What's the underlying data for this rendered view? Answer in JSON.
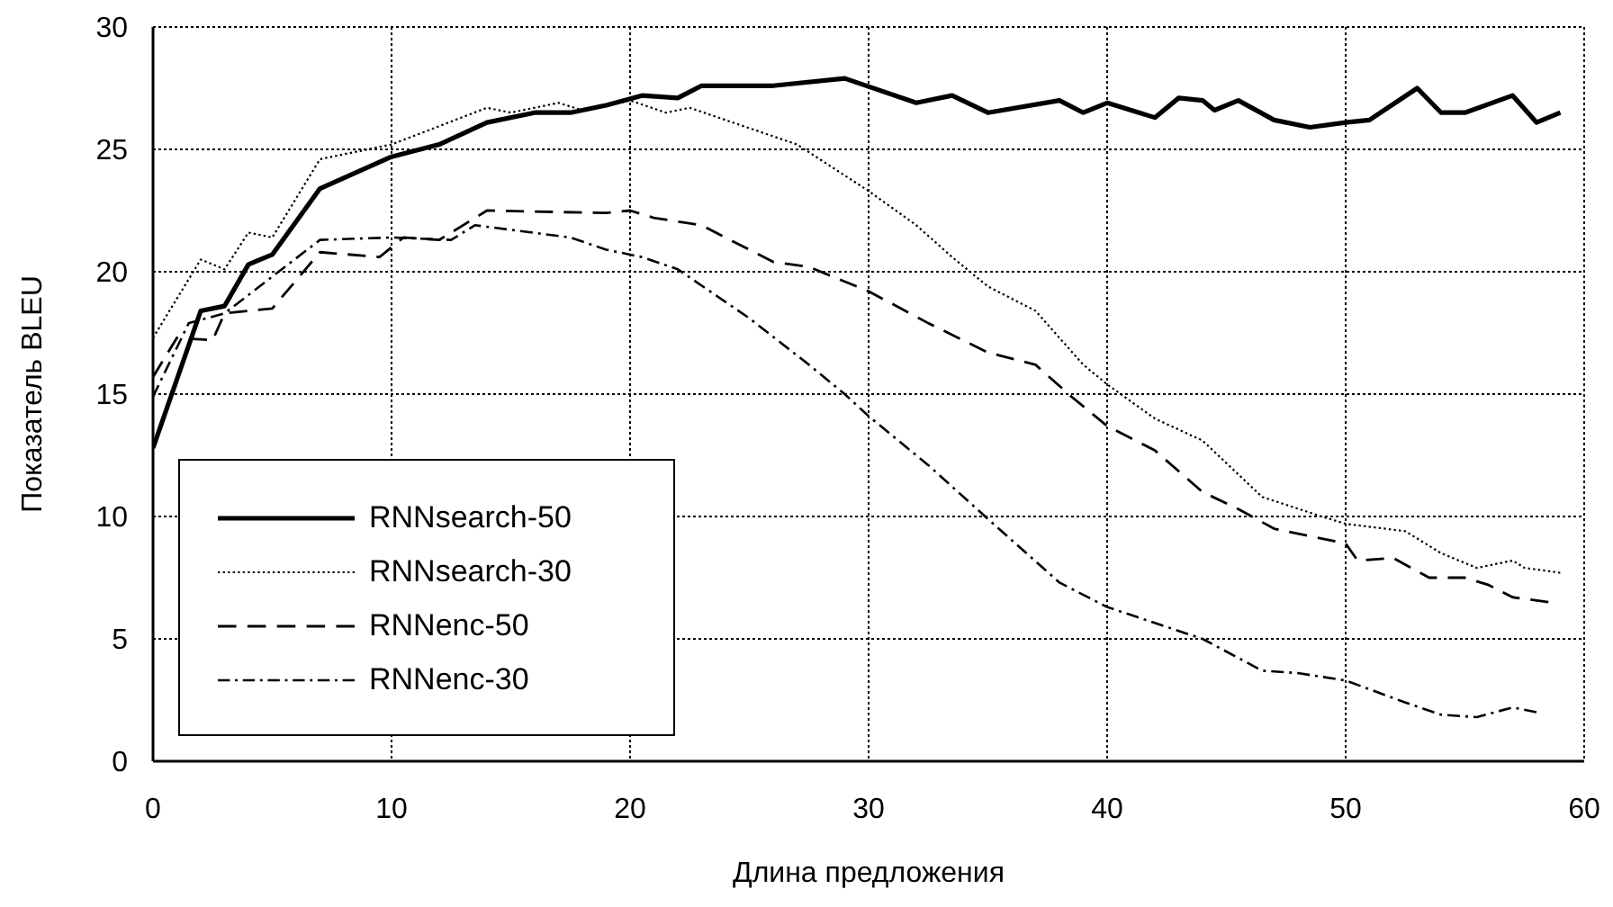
{
  "chart_data": {
    "type": "line",
    "xlabel": "Длина предложения",
    "ylabel": "Показатель BLEU",
    "xlim": [
      0,
      60
    ],
    "xticks": [
      0,
      10,
      20,
      30,
      40,
      50,
      60
    ],
    "ylim": [
      0,
      30
    ],
    "yticks": [
      0,
      5,
      10,
      15,
      20,
      25,
      30
    ],
    "grid": true,
    "legend": "bottom left",
    "marker": "none",
    "series": [
      {
        "name": "RNNsearch-50",
        "color": "#000000",
        "line_style": "solid",
        "x": [
          0,
          2,
          3,
          4,
          5,
          7,
          10,
          12,
          14,
          16,
          17.5,
          19,
          20.5,
          22,
          23,
          26,
          29,
          32,
          33.5,
          35,
          38,
          39,
          40,
          42,
          43,
          44,
          44.5,
          45.5,
          47,
          48.5,
          50,
          51,
          53,
          54,
          55,
          57,
          58,
          59
        ],
        "values": [
          12.8,
          18.4,
          18.6,
          20.3,
          20.7,
          23.4,
          24.7,
          25.2,
          26.1,
          26.5,
          26.5,
          26.8,
          27.2,
          27.1,
          27.6,
          27.6,
          27.9,
          26.9,
          27.2,
          26.5,
          27.0,
          26.5,
          26.9,
          26.3,
          27.1,
          27.0,
          26.6,
          27.0,
          26.2,
          25.9,
          26.1,
          26.2,
          27.5,
          26.5,
          26.5,
          27.2,
          26.1,
          26.5
        ]
      },
      {
        "name": "RNNsearch-30",
        "color": "#000000",
        "line_style": "dotted",
        "x": [
          0,
          2,
          3,
          4,
          5,
          7,
          10,
          14,
          15,
          17,
          18,
          20,
          21.5,
          22.5,
          24,
          27,
          30,
          32,
          33.5,
          35,
          37,
          39,
          40,
          42,
          44,
          46.5,
          49,
          50,
          52.5,
          54,
          55.5,
          57,
          57.5,
          59
        ],
        "values": [
          17.3,
          20.5,
          20.1,
          21.6,
          21.4,
          24.6,
          25.2,
          26.7,
          26.5,
          26.9,
          26.6,
          27.0,
          26.5,
          26.7,
          26.2,
          25.2,
          23.3,
          21.9,
          20.6,
          19.4,
          18.4,
          16.2,
          15.4,
          14.0,
          13.1,
          10.8,
          10.0,
          9.7,
          9.4,
          8.5,
          7.9,
          8.2,
          7.9,
          7.7
        ]
      },
      {
        "name": "RNNenc-50",
        "color": "#000000",
        "line_style": "dashed",
        "x": [
          0,
          1,
          2.5,
          3,
          5,
          7,
          9.5,
          10.5,
          12,
          14,
          19,
          20,
          21,
          23,
          26,
          27.5,
          30,
          32.5,
          35,
          37,
          38.5,
          40,
          42,
          44,
          45.5,
          47,
          50,
          50.5,
          52,
          53.5,
          55,
          56,
          57,
          58.5
        ],
        "values": [
          15.7,
          17.3,
          17.2,
          18.3,
          18.5,
          20.8,
          20.6,
          21.4,
          21.3,
          22.5,
          22.4,
          22.5,
          22.2,
          21.9,
          20.4,
          20.2,
          19.2,
          17.9,
          16.7,
          16.2,
          14.9,
          13.7,
          12.7,
          11.0,
          10.3,
          9.5,
          8.9,
          8.2,
          8.3,
          7.5,
          7.5,
          7.2,
          6.7,
          6.5
        ]
      },
      {
        "name": "RNNenc-30",
        "color": "#000000",
        "line_style": "dashdot",
        "x": [
          0,
          1.5,
          3,
          7,
          10,
          12.5,
          13.5,
          17.5,
          19,
          20.5,
          22,
          25,
          27.5,
          29,
          30,
          32.5,
          35,
          38,
          40,
          44,
          46.5,
          48,
          50,
          52.5,
          54,
          55.5,
          57,
          58
        ],
        "values": [
          14.9,
          17.9,
          18.3,
          21.3,
          21.4,
          21.3,
          21.9,
          21.4,
          20.9,
          20.6,
          20.1,
          18.1,
          16.2,
          15.0,
          14.1,
          12.1,
          9.9,
          7.3,
          6.3,
          5.0,
          3.7,
          3.6,
          3.3,
          2.4,
          1.9,
          1.8,
          2.2,
          2.0
        ]
      }
    ]
  }
}
